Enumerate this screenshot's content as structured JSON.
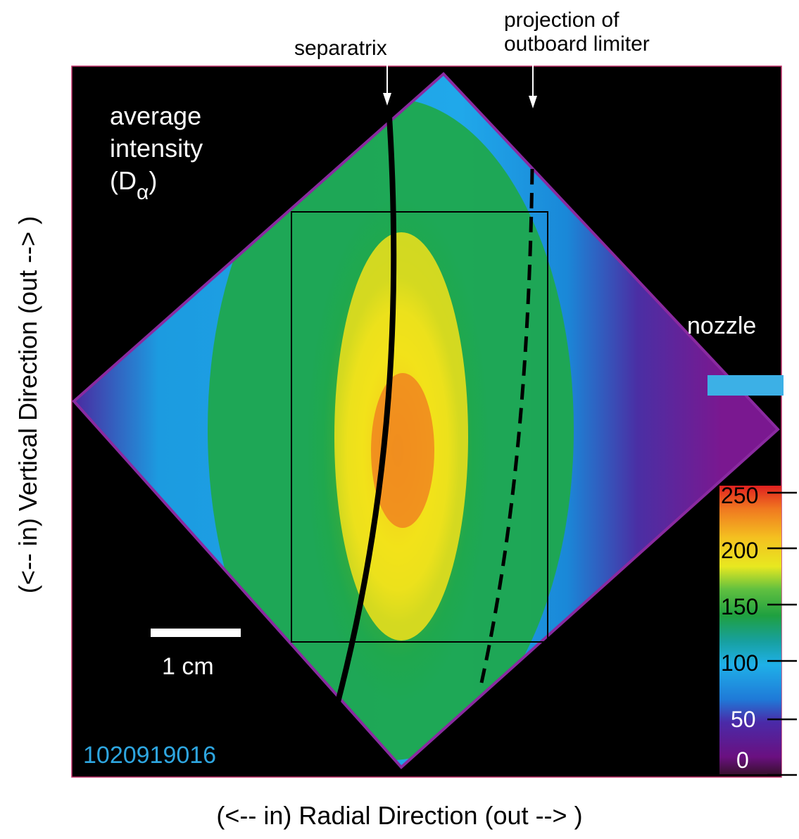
{
  "labels": {
    "separatrix": "separatrix",
    "projection_line1": "projection of",
    "projection_line2": "outboard limiter",
    "avg_line1": "average",
    "avg_line2": "intensity",
    "avg_line3_prefix": "(D",
    "avg_line3_sub": "α",
    "avg_line3_suffix": ")",
    "nozzle": "nozzle",
    "scale_bar": "1 cm",
    "shot_number": "1020919016",
    "x_axis": "(<-- in) Radial Direction  (out --> )",
    "y_axis": "(<-- in) Vertical Direction  (out --> )"
  },
  "colorbar": {
    "ticks": [
      "250",
      "200",
      "150",
      "100",
      "50",
      "0"
    ]
  },
  "colors": {
    "nozzle": "#3cb0e6",
    "shot_number": "#2ea6e0",
    "frame_border": "#c0306a"
  }
}
